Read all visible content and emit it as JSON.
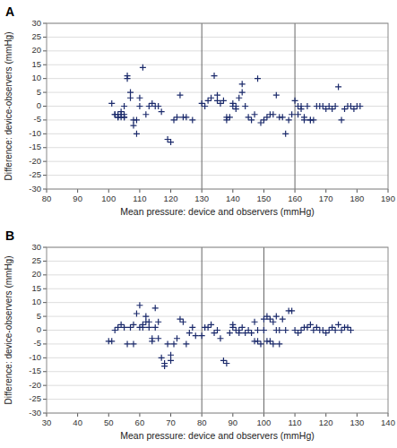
{
  "chart_data": [
    {
      "type": "scatter",
      "title": "A",
      "x": [
        101,
        102,
        102,
        103,
        103,
        103,
        104,
        104,
        104,
        105,
        105,
        105,
        105,
        106,
        106,
        107,
        107,
        108,
        108,
        109,
        109,
        110,
        110,
        111,
        112,
        113,
        114,
        115,
        116,
        117,
        119,
        120,
        121,
        122,
        123,
        124,
        125,
        127,
        130,
        131,
        132,
        133,
        134,
        135,
        135,
        136,
        137,
        138,
        138,
        139,
        140,
        140,
        141,
        141,
        142,
        143,
        143,
        144,
        145,
        146,
        147,
        148,
        149,
        150,
        151,
        152,
        153,
        154,
        155,
        156,
        157,
        158,
        159,
        160,
        161,
        161,
        162,
        162,
        163,
        163,
        164,
        165,
        165,
        166,
        167,
        168,
        169,
        170,
        171,
        172,
        173,
        174,
        175,
        176,
        177,
        178,
        179,
        180,
        181
      ],
      "values": [
        1,
        -3,
        -3,
        -4,
        -4,
        -3,
        -4,
        -2,
        -3,
        -3,
        -4,
        -4,
        0,
        10,
        11,
        5,
        3,
        -5,
        -7,
        -10,
        -5,
        0,
        3,
        14,
        -3,
        0,
        1,
        0,
        0,
        -2,
        -12,
        -13,
        -5,
        -4,
        4,
        -4,
        -4,
        -5,
        1,
        0,
        2,
        3,
        11,
        2,
        4,
        1,
        2,
        -5,
        -4,
        -4,
        0,
        1,
        0,
        -1,
        3,
        5,
        8,
        0,
        -4,
        -5,
        -3,
        10,
        -6,
        -5,
        -4,
        -3,
        -3,
        4,
        -4,
        -4,
        -10,
        -5,
        -3,
        2,
        0,
        -3,
        0,
        -1,
        -5,
        -4,
        0,
        -5,
        -5,
        -5,
        0,
        0,
        0,
        -1,
        0,
        -1,
        0,
        7,
        -5,
        -1,
        0,
        0,
        -1,
        0,
        0
      ],
      "vlines": [
        130,
        160
      ],
      "xlim": [
        80,
        190
      ],
      "ylim": [
        -30,
        30
      ],
      "xticks": [
        80,
        90,
        100,
        110,
        120,
        130,
        140,
        150,
        160,
        170,
        180,
        190
      ],
      "yticks": [
        -30,
        -25,
        -20,
        -15,
        -10,
        -5,
        0,
        5,
        10,
        15,
        20,
        25,
        30
      ],
      "x_label": "Mean pressure: device and observers (mmHg)",
      "y_label": "Difference: device-observers (mmHg)",
      "color": "#1B2A6B",
      "marker": "plus",
      "grid": true
    },
    {
      "type": "scatter",
      "title": "B",
      "x": [
        50,
        51,
        52,
        53,
        54,
        55,
        56,
        57,
        58,
        58,
        59,
        60,
        60,
        61,
        61,
        62,
        62,
        63,
        63,
        64,
        64,
        65,
        65,
        66,
        66,
        67,
        68,
        68,
        69,
        70,
        70,
        71,
        72,
        73,
        74,
        75,
        76,
        77,
        78,
        80,
        81,
        82,
        83,
        84,
        85,
        86,
        87,
        88,
        89,
        90,
        90,
        91,
        92,
        92,
        93,
        94,
        95,
        96,
        97,
        97,
        98,
        98,
        99,
        100,
        100,
        100,
        101,
        101,
        102,
        102,
        103,
        103,
        104,
        104,
        105,
        105,
        106,
        107,
        108,
        109,
        110,
        111,
        112,
        113,
        114,
        115,
        116,
        117,
        118,
        119,
        120,
        121,
        122,
        123,
        124,
        125,
        126,
        127,
        128
      ],
      "values": [
        -4,
        -4,
        0,
        1,
        2,
        1,
        -5,
        1,
        2,
        -5,
        6,
        9,
        1,
        1,
        2,
        3,
        5,
        1,
        3,
        -3,
        -4,
        1,
        8,
        -3,
        3,
        -10,
        -12,
        -13,
        -5,
        -9,
        -11,
        -5,
        -3,
        4,
        3,
        -5,
        -1,
        1,
        -2,
        -2,
        1,
        1,
        2,
        -1,
        0,
        -3,
        -11,
        -12,
        -1,
        1,
        2,
        0,
        0,
        -1,
        1,
        -1,
        0,
        -1,
        3,
        -4,
        -4,
        0,
        -5,
        0,
        0,
        4,
        5,
        -4,
        4,
        -4,
        3,
        -5,
        0,
        5,
        0,
        -5,
        4,
        0,
        7,
        7,
        0,
        -1,
        0,
        1,
        1,
        2,
        0,
        1,
        0,
        0,
        -1,
        0,
        1,
        0,
        2,
        0,
        1,
        1,
        0
      ],
      "vlines": [
        80,
        100
      ],
      "xlim": [
        30,
        140
      ],
      "ylim": [
        -30,
        30
      ],
      "xticks": [
        30,
        40,
        50,
        60,
        70,
        80,
        90,
        100,
        110,
        120,
        130,
        140
      ],
      "yticks": [
        -30,
        -25,
        -20,
        -15,
        -10,
        -5,
        0,
        5,
        10,
        15,
        20,
        25,
        30
      ],
      "x_label": "Mean pressure: device and observers (mmHg)",
      "y_label": "Difference: device-observers (mmHg)",
      "color": "#1B2A6B",
      "marker": "plus",
      "grid": true
    }
  ]
}
